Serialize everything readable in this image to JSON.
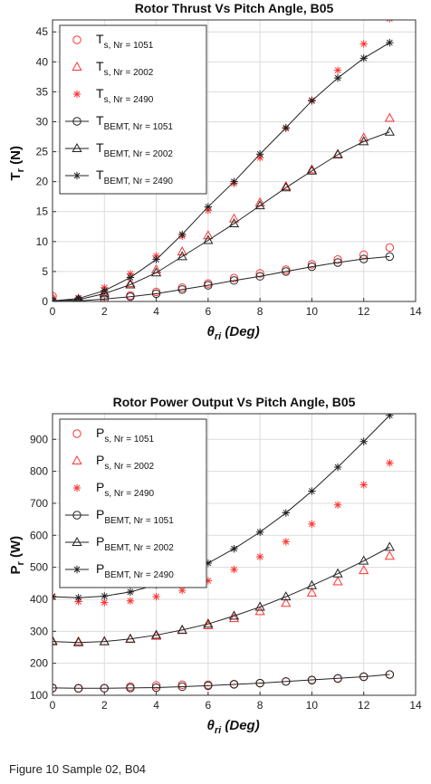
{
  "figure": {
    "caption": "Figure 10  Sample 02, B04"
  },
  "chart_data": [
    {
      "type": "scatter",
      "title": "Rotor Thrust Vs Pitch Angle, B05",
      "xlabel": "θri (Deg)",
      "xlabel_main": "θ",
      "xlabel_sub": "ri",
      "xlabel_tail": " (Deg)",
      "ylabel": "Tr (N)",
      "ylabel_main": "T",
      "ylabel_sub": "r",
      "ylabel_tail": " (N)",
      "xlim": [
        0,
        14
      ],
      "ylim": [
        0,
        47
      ],
      "xticks": [
        0,
        2,
        4,
        6,
        8,
        10,
        12,
        14
      ],
      "yticks": [
        0,
        5,
        10,
        15,
        20,
        25,
        30,
        35,
        40,
        45
      ],
      "grid": true,
      "legend_position": "top-left",
      "x": [
        0,
        1,
        2,
        3,
        4,
        5,
        6,
        7,
        8,
        9,
        10,
        11,
        12,
        13
      ],
      "series": [
        {
          "name": "Ts, Nr = 1051",
          "label_main": "T",
          "label_sub": "s, Nr = 1051",
          "marker": "circle",
          "color": "#ff3333",
          "line": false,
          "values": [
            0.9,
            0.2,
            0.8,
            1.0,
            1.6,
            2.3,
            3.0,
            3.9,
            4.7,
            5.3,
            6.2,
            7.0,
            7.8,
            9.0
          ]
        },
        {
          "name": "Ts, Nr = 2002",
          "label_main": "T",
          "label_sub": "s, Nr = 2002",
          "marker": "triangle",
          "color": "#ff3333",
          "line": false,
          "values": [
            0.6,
            0.4,
            1.6,
            3.0,
            5.3,
            8.3,
            11.0,
            13.8,
            16.5,
            19.2,
            22.0,
            24.6,
            27.3,
            30.6
          ]
        },
        {
          "name": "Ts, Nr = 2490",
          "label_main": "T",
          "label_sub": "s, Nr = 2490",
          "marker": "asterisk",
          "color": "#ff3333",
          "line": false,
          "values": [
            0.5,
            0.6,
            2.3,
            4.6,
            7.6,
            10.9,
            15.2,
            19.7,
            24.0,
            28.9,
            33.6,
            38.6,
            43.0,
            47.2
          ]
        },
        {
          "name": "TBEMT, Nr = 1051",
          "label_main": "T",
          "label_sub": "BEMT, Nr = 1051",
          "marker": "circle",
          "color": "#222222",
          "line": true,
          "values": [
            0.0,
            0.1,
            0.4,
            0.8,
            1.3,
            2.0,
            2.7,
            3.5,
            4.2,
            5.0,
            5.8,
            6.5,
            7.1,
            7.5
          ]
        },
        {
          "name": "TBEMT, Nr = 2002",
          "label_main": "T",
          "label_sub": "BEMT, Nr = 2002",
          "marker": "triangle",
          "color": "#222222",
          "line": true,
          "values": [
            0.1,
            0.3,
            1.3,
            2.8,
            4.8,
            7.5,
            10.2,
            13.0,
            16.0,
            19.0,
            21.8,
            24.5,
            26.7,
            28.3
          ]
        },
        {
          "name": "TBEMT, Nr = 2490",
          "label_main": "T",
          "label_sub": "BEMT, Nr = 2490",
          "marker": "asterisk",
          "color": "#222222",
          "line": true,
          "values": [
            0.1,
            0.5,
            1.8,
            4.0,
            7.0,
            11.2,
            15.8,
            20.0,
            24.6,
            29.0,
            33.5,
            37.3,
            40.6,
            43.2
          ]
        }
      ]
    },
    {
      "type": "scatter",
      "title": "Rotor Power Output Vs Pitch Angle, B05",
      "xlabel": "θri (Deg)",
      "xlabel_main": "θ",
      "xlabel_sub": "ri",
      "xlabel_tail": " (Deg)",
      "ylabel": "Pr (W)",
      "ylabel_main": "P",
      "ylabel_sub": "r",
      "ylabel_tail": " (W)",
      "xlim": [
        0,
        14
      ],
      "ylim": [
        100,
        980
      ],
      "xticks": [
        0,
        2,
        4,
        6,
        8,
        10,
        12,
        14
      ],
      "yticks": [
        100,
        200,
        300,
        400,
        500,
        600,
        700,
        800,
        900
      ],
      "grid": true,
      "legend_position": "top-left",
      "x": [
        0,
        1,
        2,
        3,
        4,
        5,
        6,
        7,
        8,
        9,
        10,
        11,
        12,
        13
      ],
      "series": [
        {
          "name": "Ps, Nr = 1051",
          "label_main": "P",
          "label_sub": "s, Nr = 1051",
          "marker": "circle",
          "color": "#ff3333",
          "line": false,
          "values": [
            122,
            121,
            122,
            127,
            131,
            133,
            133,
            135,
            138,
            143,
            147,
            152,
            158,
            165
          ]
        },
        {
          "name": "Ps, Nr = 2002",
          "label_main": "P",
          "label_sub": "s, Nr = 2002",
          "marker": "triangle",
          "color": "#ff3333",
          "line": false,
          "values": [
            270,
            268,
            268,
            275,
            285,
            303,
            318,
            340,
            362,
            388,
            420,
            455,
            490,
            535
          ]
        },
        {
          "name": "Ps, Nr = 2490",
          "label_main": "P",
          "label_sub": "s, Nr = 2490",
          "marker": "asterisk",
          "color": "#ff3333",
          "line": false,
          "values": [
            410,
            393,
            390,
            395,
            408,
            428,
            458,
            493,
            533,
            580,
            635,
            695,
            758,
            826
          ]
        },
        {
          "name": "PBEMT, Nr = 1051",
          "label_main": "P",
          "label_sub": "BEMT, Nr = 1051",
          "marker": "circle",
          "color": "#222222",
          "line": true,
          "values": [
            123,
            122,
            122,
            123,
            124,
            127,
            130,
            134,
            138,
            143,
            148,
            153,
            158,
            165
          ]
        },
        {
          "name": "PBEMT, Nr = 2002",
          "label_main": "P",
          "label_sub": "BEMT, Nr = 2002",
          "marker": "triangle",
          "color": "#222222",
          "line": true,
          "values": [
            268,
            265,
            268,
            276,
            288,
            304,
            323,
            348,
            376,
            408,
            443,
            480,
            520,
            563
          ]
        },
        {
          "name": "PBEMT, Nr = 2490",
          "label_main": "P",
          "label_sub": "BEMT, Nr = 2490",
          "marker": "asterisk",
          "color": "#222222",
          "line": true,
          "values": [
            408,
            405,
            410,
            423,
            445,
            475,
            513,
            558,
            610,
            670,
            738,
            813,
            893,
            975
          ]
        }
      ]
    }
  ]
}
